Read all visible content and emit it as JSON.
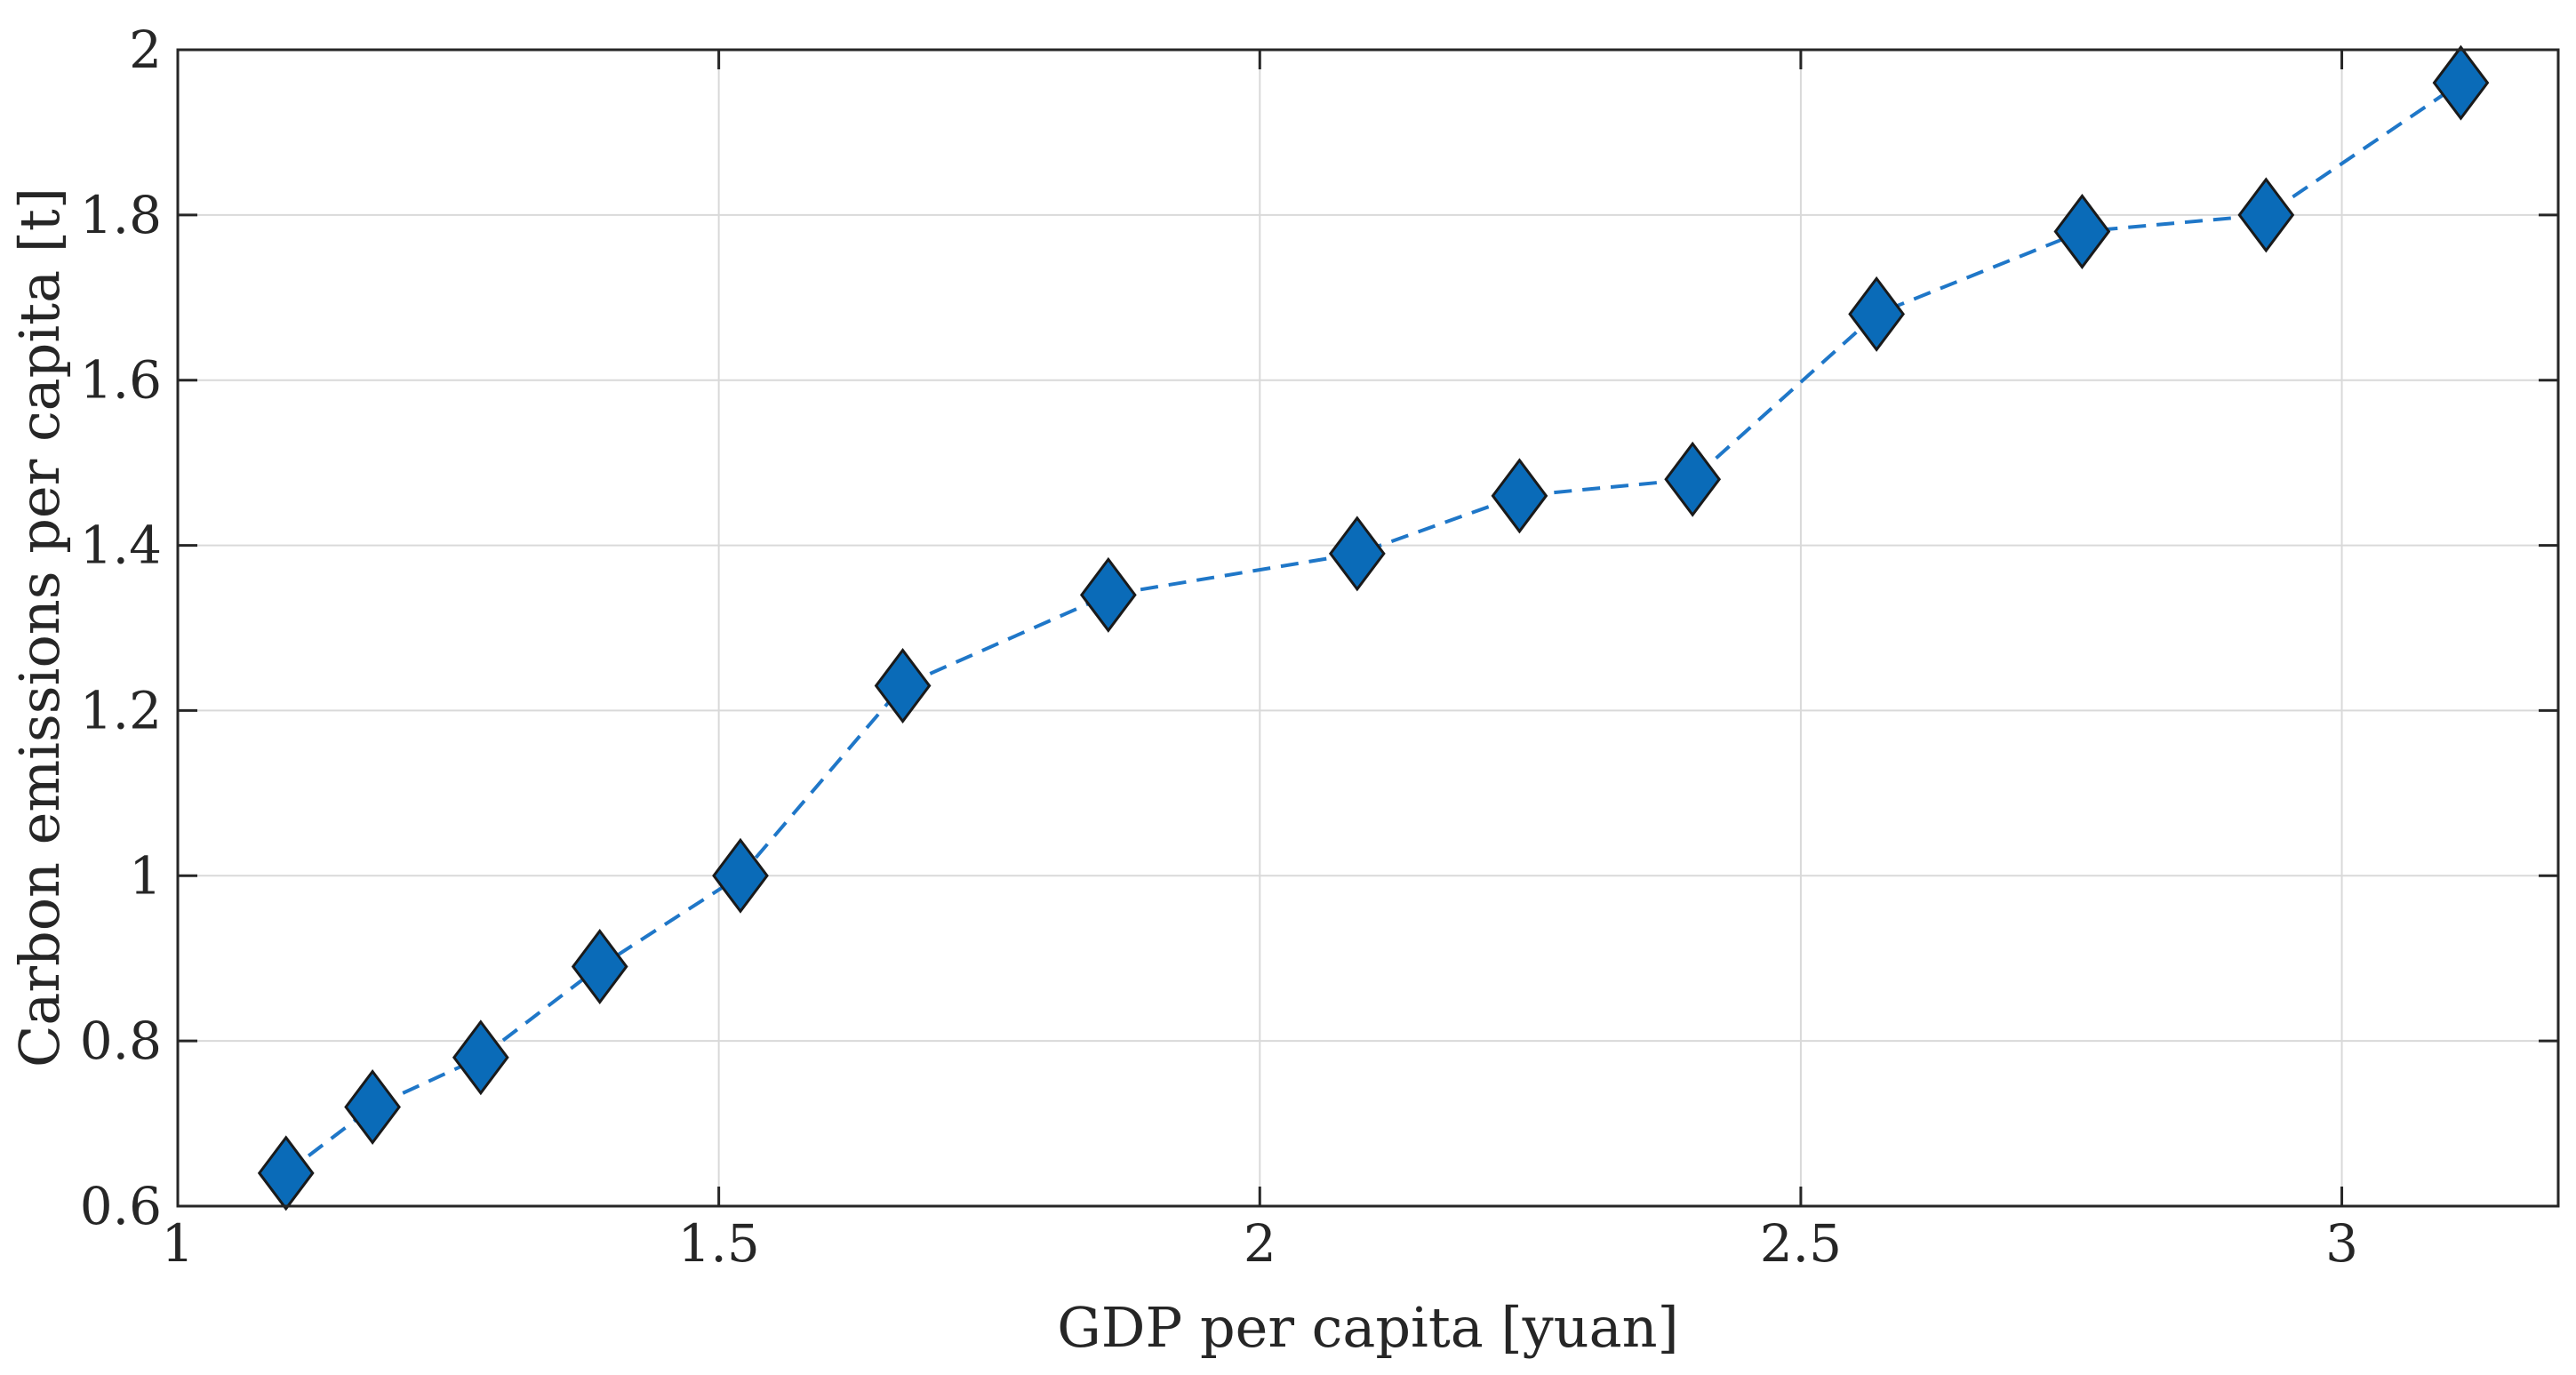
{
  "chart_data": {
    "type": "line",
    "title": "",
    "xlabel": "GDP per capita [yuan]",
    "ylabel": "Carbon emissions per capita [t]",
    "xlim": [
      1,
      3.2
    ],
    "ylim": [
      0.6,
      2
    ],
    "x_ticks": [
      1,
      1.5,
      2,
      2.5,
      3
    ],
    "x_tick_labels": [
      "1",
      "1.5",
      "2",
      "2.5",
      "3"
    ],
    "y_ticks": [
      0.6,
      0.8,
      1,
      1.2,
      1.4,
      1.6,
      1.8,
      2
    ],
    "y_tick_labels": [
      "0.6",
      "0.8",
      "1",
      "1.2",
      "1.4",
      "1.6",
      "1.8",
      "2"
    ],
    "grid": true,
    "series": [
      {
        "line_style": "dashed",
        "marker": "diamond",
        "color": "#0a6bb8",
        "x": [
          1.1,
          1.18,
          1.28,
          1.39,
          1.52,
          1.67,
          1.86,
          2.09,
          2.24,
          2.4,
          2.57,
          2.76,
          2.93,
          3.11
        ],
        "y": [
          0.64,
          0.72,
          0.78,
          0.89,
          1.0,
          1.23,
          1.34,
          1.39,
          1.46,
          1.48,
          1.68,
          1.78,
          1.8,
          1.96
        ]
      }
    ]
  }
}
